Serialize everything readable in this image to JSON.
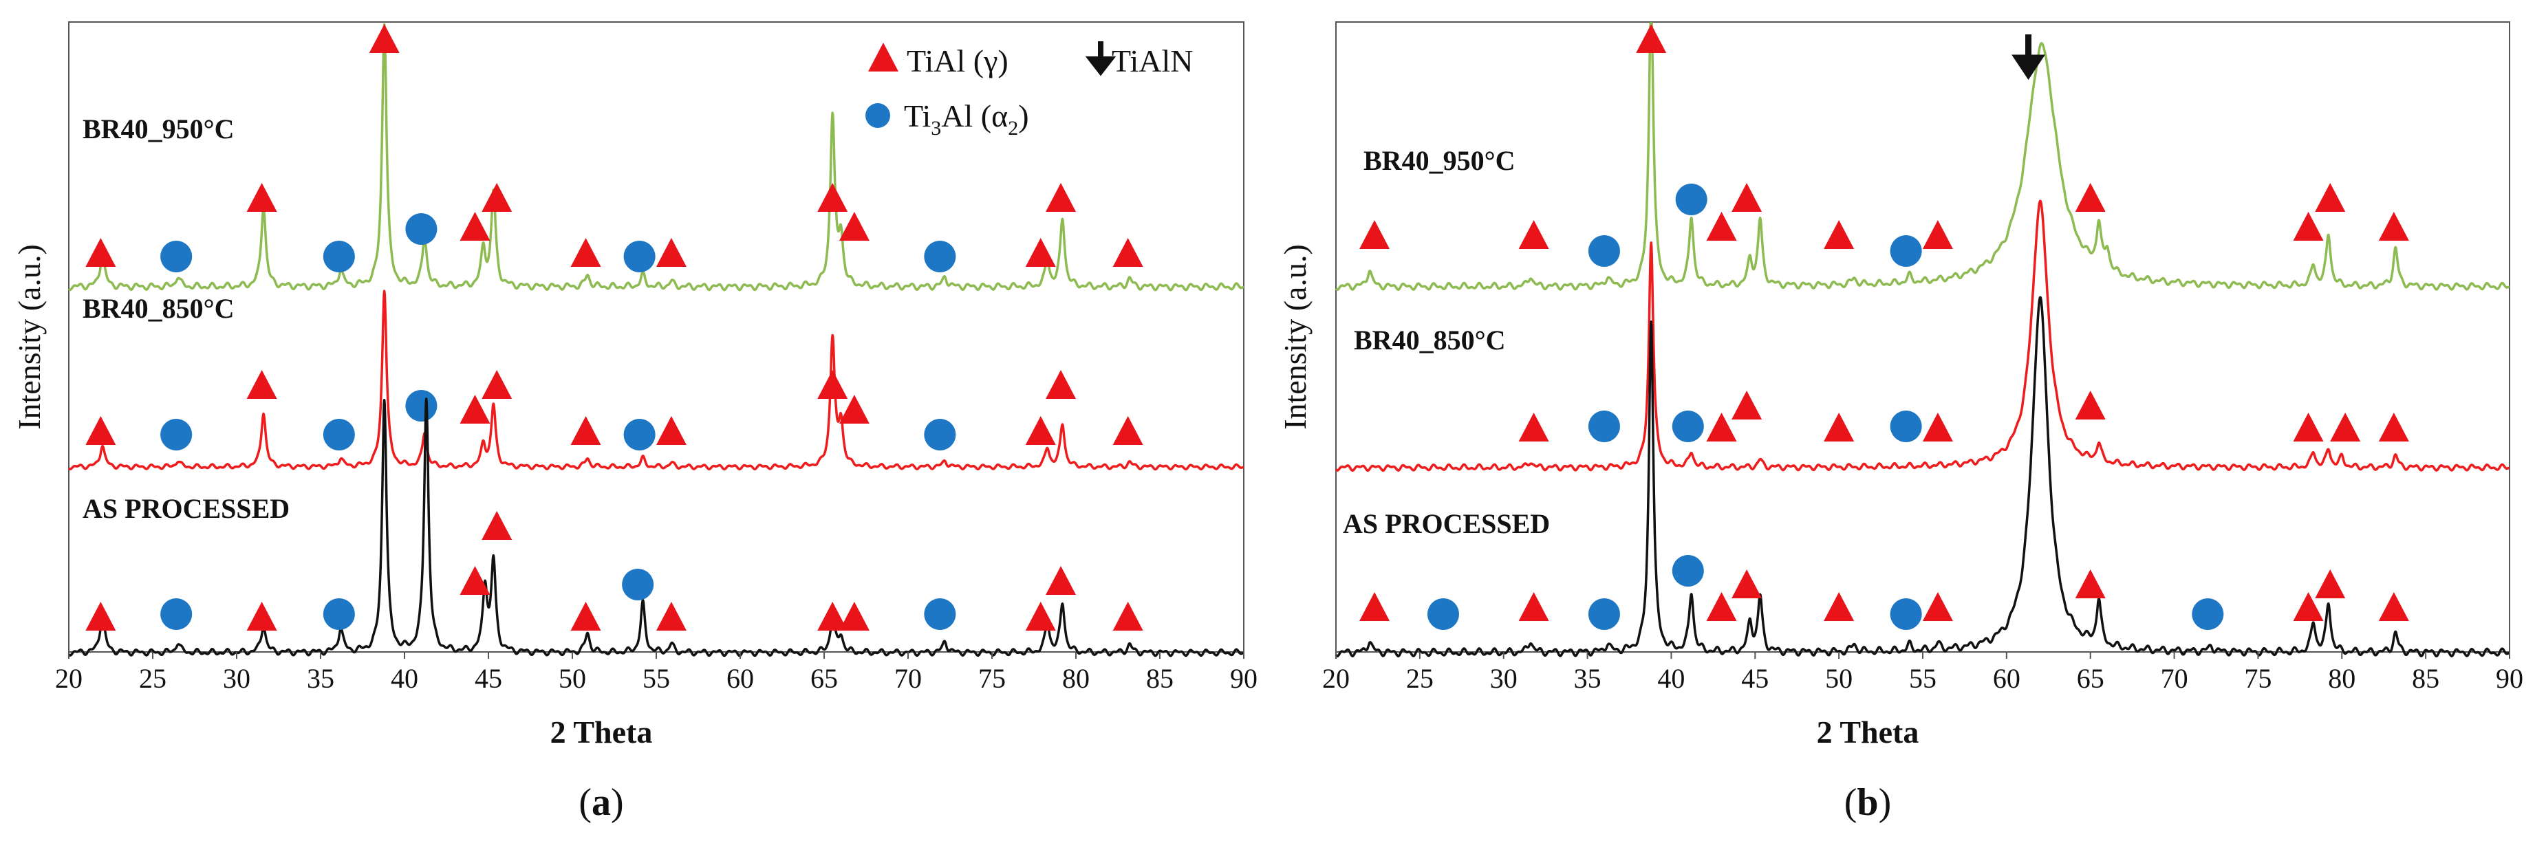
{
  "colors": {
    "green": "#8DBB52",
    "red": "#EE1C1C",
    "black": "#111111",
    "triangle": "#E8141A",
    "circle": "#1E77C4",
    "frame": "#555555"
  },
  "chart_data": [
    {
      "type": "line",
      "panel": "(a)",
      "panel_letter": "a",
      "xlabel": "2 Theta",
      "ylabel": "Intensity (a.u.)",
      "xlim": [
        20,
        90
      ],
      "xticks": [
        20,
        25,
        30,
        35,
        40,
        45,
        50,
        55,
        60,
        65,
        70,
        75,
        80,
        85,
        90
      ],
      "legend": {
        "placement": "top-right",
        "triangle": "TiAl (γ)",
        "arrow": "TiAlN",
        "circle_prefix": "Ti",
        "circle_sub1": "3",
        "circle_mid": "Al (α",
        "circle_sub2": "2",
        "circle_suffix": ")"
      },
      "series": [
        {
          "name": "BR40_950°C",
          "color": "green",
          "level": 0.0,
          "peaks": [
            [
              22.0,
              0.2
            ],
            [
              26.5,
              0.06
            ],
            [
              31.6,
              0.48
            ],
            [
              36.2,
              0.1
            ],
            [
              38.8,
              1.55
            ],
            [
              41.2,
              0.29
            ],
            [
              44.7,
              0.22
            ],
            [
              45.3,
              0.55
            ],
            [
              50.9,
              0.07
            ],
            [
              54.2,
              0.07
            ],
            [
              55.9,
              0.03
            ],
            [
              65.5,
              1.0
            ],
            [
              66.0,
              0.28
            ],
            [
              72.2,
              0.06
            ],
            [
              78.3,
              0.15
            ],
            [
              79.2,
              0.4
            ],
            [
              83.2,
              0.05
            ]
          ],
          "triangles": [
            [
              21.9,
              "lo"
            ],
            [
              31.5,
              "hi"
            ],
            [
              38.8,
              "top"
            ],
            [
              44.2,
              "mid"
            ],
            [
              45.5,
              "hi"
            ],
            [
              50.8,
              "lo"
            ],
            [
              55.9,
              "lo"
            ],
            [
              65.5,
              "hi"
            ],
            [
              66.8,
              "mid"
            ],
            [
              77.9,
              "lo"
            ],
            [
              79.1,
              "hi"
            ],
            [
              83.1,
              "lo"
            ]
          ],
          "circles": [
            [
              26.4,
              "lo"
            ],
            [
              36.1,
              "lo"
            ],
            [
              41.0,
              "mid"
            ],
            [
              54.0,
              "lo"
            ],
            [
              71.9,
              "lo"
            ]
          ]
        },
        {
          "name": "BR40_850°C",
          "color": "red",
          "level": 0.0,
          "peaks": [
            [
              22.0,
              0.18
            ],
            [
              26.5,
              0.05
            ],
            [
              31.6,
              0.45
            ],
            [
              36.2,
              0.07
            ],
            [
              38.8,
              1.45
            ],
            [
              41.2,
              0.28
            ],
            [
              44.7,
              0.18
            ],
            [
              45.3,
              0.5
            ],
            [
              50.9,
              0.07
            ],
            [
              54.2,
              0.07
            ],
            [
              55.9,
              0.03
            ],
            [
              65.5,
              1.05
            ],
            [
              66.0,
              0.35
            ],
            [
              72.2,
              0.05
            ],
            [
              78.3,
              0.15
            ],
            [
              79.2,
              0.35
            ],
            [
              83.2,
              0.04
            ]
          ],
          "triangles": [
            [
              21.9,
              "lo"
            ],
            [
              31.5,
              "hi"
            ],
            [
              44.2,
              "mid"
            ],
            [
              45.5,
              "hi"
            ],
            [
              50.8,
              "lo"
            ],
            [
              55.9,
              "lo"
            ],
            [
              65.5,
              "hi"
            ],
            [
              66.8,
              "mid"
            ],
            [
              77.9,
              "lo"
            ],
            [
              79.1,
              "hi"
            ],
            [
              83.1,
              "lo"
            ]
          ],
          "circles": [
            [
              26.4,
              "lo"
            ],
            [
              36.1,
              "lo"
            ],
            [
              41.0,
              "mid"
            ],
            [
              54.0,
              "lo"
            ],
            [
              71.9,
              "lo"
            ]
          ]
        },
        {
          "name": "AS PROCESSED",
          "color": "black",
          "level": 0.0,
          "peaks": [
            [
              22.0,
              0.25
            ],
            [
              26.5,
              0.06
            ],
            [
              31.6,
              0.17
            ],
            [
              36.2,
              0.15
            ],
            [
              38.8,
              1.55
            ],
            [
              41.3,
              1.55
            ],
            [
              44.8,
              0.4
            ],
            [
              45.3,
              0.55
            ],
            [
              50.9,
              0.12
            ],
            [
              54.2,
              0.3
            ],
            [
              55.9,
              0.05
            ],
            [
              65.5,
              0.22
            ],
            [
              66.0,
              0.1
            ],
            [
              72.2,
              0.07
            ],
            [
              78.3,
              0.18
            ],
            [
              79.2,
              0.3
            ],
            [
              83.2,
              0.05
            ]
          ],
          "triangles": [
            [
              21.9,
              "lo"
            ],
            [
              31.5,
              "lo"
            ],
            [
              44.2,
              "mid"
            ],
            [
              45.5,
              "hi"
            ],
            [
              50.8,
              "lo"
            ],
            [
              55.9,
              "lo"
            ],
            [
              65.5,
              "lo"
            ],
            [
              66.8,
              "lo"
            ],
            [
              77.9,
              "lo"
            ],
            [
              79.1,
              "mid"
            ],
            [
              83.1,
              "lo"
            ]
          ],
          "circles": [
            [
              26.4,
              "lo"
            ],
            [
              36.1,
              "lo"
            ],
            [
              53.9,
              "mid"
            ],
            [
              71.9,
              "lo"
            ]
          ]
        }
      ]
    },
    {
      "type": "line",
      "panel": "(b)",
      "panel_letter": "b",
      "xlabel": "2 Theta",
      "ylabel": "Intensity (a.u.)",
      "xlim": [
        20,
        90
      ],
      "xticks": [
        20,
        25,
        30,
        35,
        40,
        45,
        50,
        55,
        60,
        65,
        70,
        75,
        80,
        85,
        90
      ],
      "arrow_at": 61.3,
      "series": [
        {
          "name": "BR40_950°C",
          "color": "green",
          "level": 0.0,
          "peaks": [
            [
              22.0,
              0.1
            ],
            [
              31.6,
              0.06
            ],
            [
              36.2,
              0.05
            ],
            [
              38.8,
              1.7
            ],
            [
              41.2,
              0.4
            ],
            [
              44.7,
              0.15
            ],
            [
              45.3,
              0.38
            ],
            [
              50.9,
              0.04
            ],
            [
              54.2,
              0.04
            ],
            [
              62.1,
              1.4,
              1.1
            ],
            [
              65.5,
              0.25
            ],
            [
              66.0,
              0.12
            ],
            [
              78.3,
              0.12
            ],
            [
              79.2,
              0.3
            ],
            [
              83.2,
              0.22
            ]
          ],
          "triangles": [
            [
              22.3,
              "lo"
            ],
            [
              31.8,
              "lo"
            ],
            [
              38.8,
              "top"
            ],
            [
              43.0,
              "mid"
            ],
            [
              44.5,
              "hi"
            ],
            [
              50.0,
              "lo"
            ],
            [
              55.9,
              "lo"
            ],
            [
              65.0,
              "hi"
            ],
            [
              78.0,
              "mid"
            ],
            [
              79.3,
              "hi"
            ],
            [
              83.1,
              "mid"
            ]
          ],
          "circles": [
            [
              36.0,
              "lo"
            ],
            [
              41.2,
              "hi"
            ],
            [
              54.0,
              "lo"
            ]
          ]
        },
        {
          "name": "BR40_850°C",
          "color": "red",
          "level": 0.0,
          "peaks": [
            [
              31.6,
              0.04
            ],
            [
              38.8,
              1.5
            ],
            [
              41.2,
              0.1
            ],
            [
              45.3,
              0.05
            ],
            [
              62.0,
              1.75,
              0.6
            ],
            [
              65.5,
              0.12
            ],
            [
              78.3,
              0.1
            ],
            [
              79.2,
              0.12
            ],
            [
              80.0,
              0.07
            ],
            [
              83.2,
              0.08
            ]
          ],
          "triangles": [
            [
              31.8,
              "lo"
            ],
            [
              43.0,
              "lo"
            ],
            [
              44.5,
              "mid"
            ],
            [
              50.0,
              "lo"
            ],
            [
              55.9,
              "lo"
            ],
            [
              65.0,
              "mid"
            ],
            [
              78.0,
              "lo"
            ],
            [
              80.2,
              "lo"
            ],
            [
              83.1,
              "lo"
            ]
          ],
          "circles": [
            [
              36.0,
              "lo"
            ],
            [
              41.0,
              "mid"
            ],
            [
              54.0,
              "lo"
            ]
          ]
        },
        {
          "name": "AS PROCESSED",
          "color": "black",
          "level": 0.0,
          "peaks": [
            [
              22.0,
              0.06
            ],
            [
              31.6,
              0.06
            ],
            [
              36.2,
              0.04
            ],
            [
              38.8,
              1.7
            ],
            [
              41.2,
              0.3
            ],
            [
              44.7,
              0.15
            ],
            [
              45.3,
              0.28
            ],
            [
              50.9,
              0.04
            ],
            [
              54.2,
              0.03
            ],
            [
              55.9,
              0.03
            ],
            [
              62.0,
              1.8,
              0.6
            ],
            [
              65.5,
              0.23
            ],
            [
              72.2,
              0.03
            ],
            [
              78.3,
              0.15
            ],
            [
              79.2,
              0.25
            ],
            [
              83.2,
              0.1
            ]
          ],
          "triangles": [
            [
              22.3,
              "lo"
            ],
            [
              31.8,
              "lo"
            ],
            [
              43.0,
              "lo"
            ],
            [
              44.5,
              "mid"
            ],
            [
              50.0,
              "lo"
            ],
            [
              55.9,
              "lo"
            ],
            [
              65.0,
              "mid"
            ],
            [
              78.0,
              "lo"
            ],
            [
              79.3,
              "mid"
            ],
            [
              83.1,
              "lo"
            ]
          ],
          "circles": [
            [
              26.4,
              "lo"
            ],
            [
              36.0,
              "lo"
            ],
            [
              41.0,
              "mid"
            ],
            [
              54.0,
              "lo"
            ],
            [
              72.0,
              "lo"
            ]
          ]
        }
      ]
    }
  ]
}
